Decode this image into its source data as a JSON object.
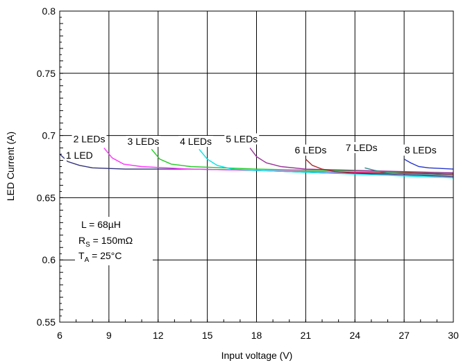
{
  "chart_data": {
    "type": "line",
    "title": "",
    "xlabel": "Input voltage (V)",
    "ylabel": "LED Current (A)",
    "xlim": [
      6,
      30
    ],
    "ylim": [
      0.55,
      0.8
    ],
    "xticks": [
      6,
      9,
      12,
      15,
      18,
      21,
      24,
      27,
      30
    ],
    "xtick_labels": [
      "6",
      "9",
      "12",
      "15",
      "18",
      "21",
      "24",
      "27",
      "30"
    ],
    "yticks": [
      0.55,
      0.6,
      0.65,
      0.7,
      0.75,
      0.8
    ],
    "ytick_labels": [
      "0.55",
      "0.6",
      "0.65",
      "0.7",
      "0.75",
      "0.8"
    ],
    "grid": true,
    "series": [
      {
        "name": "1 LED",
        "color": "#30307a",
        "points": [
          [
            6.0,
            0.685
          ],
          [
            6.5,
            0.679
          ],
          [
            7.2,
            0.676
          ],
          [
            8.0,
            0.674
          ],
          [
            10,
            0.673
          ],
          [
            14,
            0.673
          ],
          [
            18,
            0.672
          ],
          [
            22,
            0.67
          ],
          [
            26,
            0.669
          ],
          [
            30,
            0.667
          ]
        ]
      },
      {
        "name": "2 LEDs",
        "color": "#ff33ff",
        "points": [
          [
            8.7,
            0.69
          ],
          [
            9.2,
            0.682
          ],
          [
            9.9,
            0.677
          ],
          [
            11,
            0.675
          ],
          [
            14,
            0.673
          ],
          [
            18,
            0.672
          ],
          [
            22,
            0.671
          ],
          [
            26,
            0.67
          ],
          [
            30,
            0.669
          ]
        ]
      },
      {
        "name": "3 LEDs",
        "color": "#22cc22",
        "points": [
          [
            11.6,
            0.689
          ],
          [
            12.1,
            0.681
          ],
          [
            12.8,
            0.677
          ],
          [
            14,
            0.675
          ],
          [
            18,
            0.673
          ],
          [
            22,
            0.672
          ],
          [
            26,
            0.671
          ],
          [
            30,
            0.67
          ]
        ]
      },
      {
        "name": "4 LEDs",
        "color": "#00e5e5",
        "points": [
          [
            14.5,
            0.689
          ],
          [
            15.0,
            0.681
          ],
          [
            15.6,
            0.676
          ],
          [
            16.5,
            0.673
          ],
          [
            18,
            0.672
          ],
          [
            22,
            0.67
          ],
          [
            26,
            0.668
          ],
          [
            30,
            0.666
          ]
        ]
      },
      {
        "name": "5 LEDs",
        "color": "#993399",
        "points": [
          [
            17.6,
            0.69
          ],
          [
            18.0,
            0.683
          ],
          [
            18.6,
            0.678
          ],
          [
            19.5,
            0.675
          ],
          [
            21,
            0.673
          ],
          [
            24,
            0.672
          ],
          [
            27,
            0.671
          ],
          [
            30,
            0.67
          ]
        ]
      },
      {
        "name": "6 LEDs",
        "color": "#aa2222",
        "points": [
          [
            21.0,
            0.681
          ],
          [
            21.4,
            0.676
          ],
          [
            22.0,
            0.673
          ],
          [
            22.8,
            0.671
          ],
          [
            24,
            0.67
          ],
          [
            27,
            0.67
          ],
          [
            30,
            0.669
          ]
        ]
      },
      {
        "name": "7 LEDs",
        "color": "#338888",
        "points": [
          [
            24.6,
            0.674
          ],
          [
            25.2,
            0.672
          ],
          [
            26,
            0.67
          ],
          [
            28,
            0.669
          ],
          [
            30,
            0.668
          ]
        ]
      },
      {
        "name": "8 LEDs",
        "color": "#2233cc",
        "points": [
          [
            27.0,
            0.681
          ],
          [
            27.4,
            0.678
          ],
          [
            27.9,
            0.675
          ],
          [
            28.5,
            0.674
          ],
          [
            30,
            0.673
          ]
        ]
      }
    ],
    "series_labels": [
      {
        "text": "1 LED",
        "x": 7.2,
        "y": 0.6815
      },
      {
        "text": "2 LEDs",
        "x": 7.8,
        "y": 0.6945
      },
      {
        "text": "3 LEDs",
        "x": 11.1,
        "y": 0.6925
      },
      {
        "text": "4 LEDs",
        "x": 14.3,
        "y": 0.6925
      },
      {
        "text": "5 LEDs",
        "x": 17.1,
        "y": 0.6945
      },
      {
        "text": "6 LEDs",
        "x": 21.3,
        "y": 0.6855
      },
      {
        "text": "7 LEDs",
        "x": 24.4,
        "y": 0.6875
      },
      {
        "text": "8 LEDs",
        "x": 28.0,
        "y": 0.6855
      }
    ],
    "annotation": {
      "line1": "L = 68µH",
      "line2_main": "R",
      "line2_sub": "S",
      "line2_rest": " = 150mΩ",
      "line3_main": "T",
      "line3_sub": "A",
      "line3_rest": " = 25°C"
    }
  }
}
